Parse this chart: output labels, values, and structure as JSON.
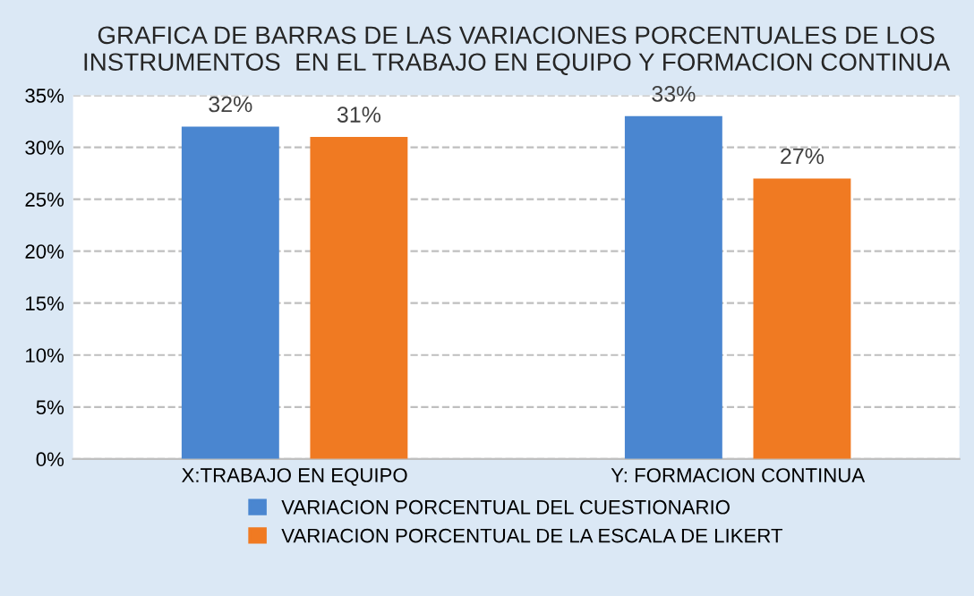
{
  "chart_data": {
    "type": "bar",
    "title": "GRAFICA DE BARRAS DE LAS VARIACIONES PORCENTUALES DE LOS\nINSTRUMENTOS  EN EL TRABAJO EN EQUIPO Y FORMACION CONTINUA",
    "categories": [
      "X:TRABAJO EN EQUIPO",
      "Y: FORMACION CONTINUA"
    ],
    "series": [
      {
        "name": "VARIACION PORCENTUAL DEL CUESTIONARIO",
        "color": "#4a86d0",
        "values": [
          32,
          33
        ]
      },
      {
        "name": "VARIACION PORCENTUAL DE LA ESCALA DE LIKERT",
        "color": "#f07a22",
        "values": [
          31,
          27
        ]
      }
    ],
    "ylim": [
      0,
      35
    ],
    "yticks": [
      {
        "value": 0,
        "label": "0%"
      },
      {
        "value": 5,
        "label": "5%"
      },
      {
        "value": 10,
        "label": "10%"
      },
      {
        "value": 15,
        "label": "15%"
      },
      {
        "value": 20,
        "label": "20%"
      },
      {
        "value": 25,
        "label": "25%"
      },
      {
        "value": 30,
        "label": "30%"
      },
      {
        "value": 35,
        "label": "35%"
      }
    ],
    "value_labels": [
      [
        "32%",
        "33%"
      ],
      [
        "31%",
        "27%"
      ]
    ],
    "grid": "y",
    "legend": "bottom"
  }
}
